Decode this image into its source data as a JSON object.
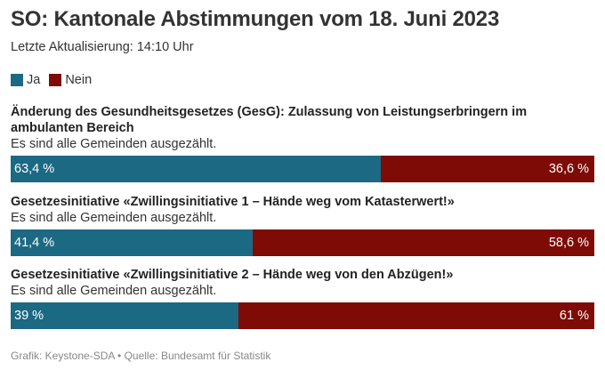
{
  "header": {
    "title": "SO: Kantonale Abstimmungen vom 18. Juni 2023",
    "updated": "Letzte Aktualisierung: 14:10 Uhr"
  },
  "legend": {
    "yes_label": "Ja",
    "no_label": "Nein"
  },
  "colors": {
    "yes": "#1c6983",
    "no": "#7e0b05"
  },
  "chart_data": {
    "type": "bar",
    "orientation": "horizontal-stacked",
    "legend_placement": "top-left",
    "series_names": [
      "Ja",
      "Nein"
    ],
    "items": [
      {
        "title": "Änderung des Gesundheitsgesetzes (GesG): Zulassung von Leistungserbringern im ambulanten Bereich",
        "status": "Es sind alle Gemeinden ausgezählt.",
        "yes": 63.4,
        "no": 36.6,
        "yes_label": "63,4 %",
        "no_label": "36,6 %"
      },
      {
        "title": "Gesetzesinitiative «Zwillingsinitiative 1 – Hände weg vom Katasterwert!»",
        "status": "Es sind alle Gemeinden ausgezählt.",
        "yes": 41.4,
        "no": 58.6,
        "yes_label": "41,4 %",
        "no_label": "58,6 %"
      },
      {
        "title": "Gesetzesinitiative «Zwillingsinitiative 2 – Hände weg von den Abzügen!»",
        "status": "Es sind alle Gemeinden ausgezählt.",
        "yes": 39,
        "no": 61,
        "yes_label": "39 %",
        "no_label": "61 %"
      }
    ]
  },
  "footer": {
    "source": "Grafik: Keystone-SDA • Quelle: Bundesamt für Statistik"
  }
}
